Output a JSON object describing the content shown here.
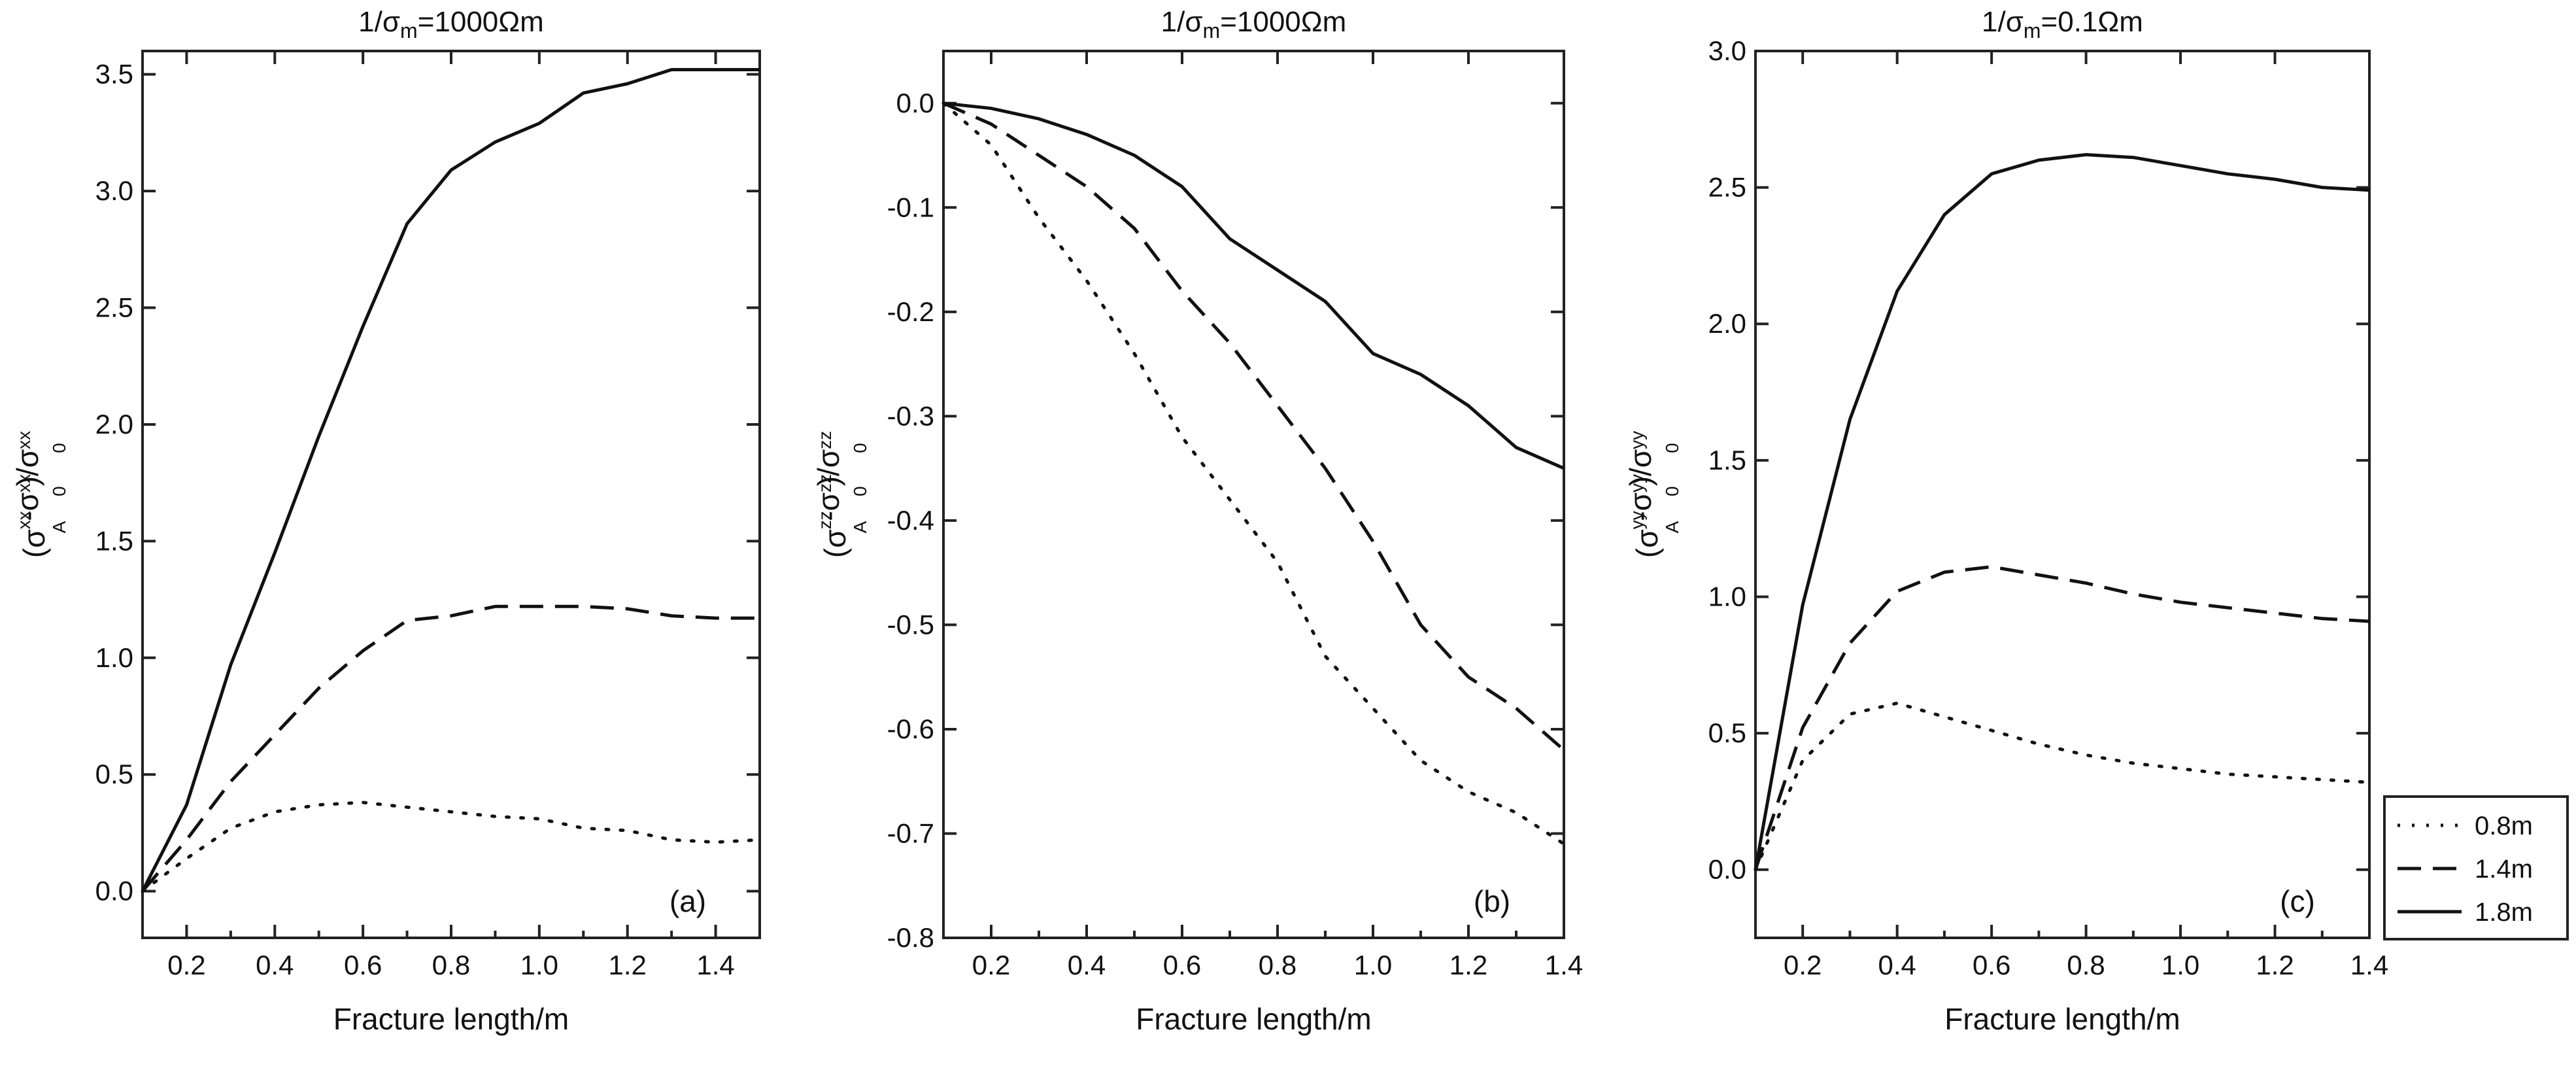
{
  "legend": {
    "entries": [
      {
        "label": "0.8m",
        "style": "dotted"
      },
      {
        "label": "1.4m",
        "style": "dashed"
      },
      {
        "label": "1.8m",
        "style": "solid"
      }
    ]
  },
  "chart_data": [
    {
      "type": "line",
      "title_prefix": "1/σ",
      "title_sub": "m",
      "title_suffix": "=1000Ωm",
      "panel_label": "(a)",
      "xlabel": "Fracture length/m",
      "ylabel_var": "xx",
      "xlim": [
        0.1,
        1.5
      ],
      "ylim": [
        -0.2,
        3.6
      ],
      "xticks": [
        0.2,
        0.4,
        0.6,
        0.8,
        1.0,
        1.2,
        1.4
      ],
      "xtick_labels": [
        "0.2",
        "0.4",
        "0.6",
        "0.8",
        "1.0",
        "1.2",
        "1.4"
      ],
      "yticks": [
        0.0,
        0.5,
        1.0,
        1.5,
        2.0,
        2.5,
        3.0,
        3.5
      ],
      "ytick_labels": [
        "0.0",
        "0.5",
        "1.0",
        "1.5",
        "2.0",
        "2.5",
        "3.0",
        "3.5"
      ],
      "series": [
        {
          "name": "0.8m",
          "style": "dotted",
          "x": [
            0.1,
            0.2,
            0.3,
            0.4,
            0.5,
            0.6,
            0.7,
            0.8,
            0.9,
            1.0,
            1.1,
            1.2,
            1.3,
            1.4,
            1.5
          ],
          "y": [
            0.0,
            0.14,
            0.27,
            0.34,
            0.37,
            0.38,
            0.36,
            0.34,
            0.32,
            0.31,
            0.27,
            0.26,
            0.22,
            0.21,
            0.22
          ]
        },
        {
          "name": "1.4m",
          "style": "dashed",
          "x": [
            0.1,
            0.2,
            0.3,
            0.4,
            0.5,
            0.6,
            0.7,
            0.8,
            0.9,
            1.0,
            1.1,
            1.2,
            1.3,
            1.4,
            1.5
          ],
          "y": [
            0.0,
            0.22,
            0.47,
            0.67,
            0.87,
            1.03,
            1.16,
            1.18,
            1.22,
            1.22,
            1.22,
            1.21,
            1.18,
            1.17,
            1.17
          ]
        },
        {
          "name": "1.8m",
          "style": "solid",
          "x": [
            0.1,
            0.2,
            0.3,
            0.4,
            0.5,
            0.6,
            0.7,
            0.8,
            0.9,
            1.0,
            1.1,
            1.2,
            1.3,
            1.4,
            1.5
          ],
          "y": [
            0.0,
            0.37,
            0.97,
            1.45,
            1.95,
            2.42,
            2.86,
            3.09,
            3.21,
            3.29,
            3.42,
            3.46,
            3.52,
            3.52,
            3.52
          ]
        }
      ]
    },
    {
      "type": "line",
      "title_prefix": "1/σ",
      "title_sub": "m",
      "title_suffix": "=1000Ωm",
      "panel_label": "(b)",
      "xlabel": "Fracture length/m",
      "ylabel_var": "zz",
      "xlim": [
        0.1,
        1.4
      ],
      "ylim": [
        -0.8,
        0.05
      ],
      "xticks": [
        0.2,
        0.4,
        0.6,
        0.8,
        1.0,
        1.2,
        1.4
      ],
      "xtick_labels": [
        "0.2",
        "0.4",
        "0.6",
        "0.8",
        "1.0",
        "1.2",
        "1.4"
      ],
      "yticks": [
        0.0,
        -0.1,
        -0.2,
        -0.3,
        -0.4,
        -0.5,
        -0.6,
        -0.7,
        -0.8
      ],
      "ytick_labels": [
        "0.0",
        "-0.1",
        "-0.2",
        "-0.3",
        "-0.4",
        "-0.5",
        "-0.6",
        "-0.7",
        "-0.8"
      ],
      "series": [
        {
          "name": "0.8m",
          "style": "dotted",
          "x": [
            0.1,
            0.2,
            0.3,
            0.4,
            0.5,
            0.6,
            0.7,
            0.8,
            0.9,
            1.0,
            1.1,
            1.2,
            1.3,
            1.4
          ],
          "y": [
            0.0,
            -0.04,
            -0.11,
            -0.17,
            -0.24,
            -0.32,
            -0.38,
            -0.44,
            -0.53,
            -0.58,
            -0.63,
            -0.66,
            -0.68,
            -0.71
          ]
        },
        {
          "name": "1.4m",
          "style": "dashed",
          "x": [
            0.1,
            0.2,
            0.3,
            0.4,
            0.5,
            0.6,
            0.7,
            0.8,
            0.9,
            1.0,
            1.1,
            1.2,
            1.3,
            1.4
          ],
          "y": [
            0.0,
            -0.02,
            -0.05,
            -0.08,
            -0.12,
            -0.18,
            -0.23,
            -0.29,
            -0.35,
            -0.42,
            -0.5,
            -0.55,
            -0.58,
            -0.62
          ]
        },
        {
          "name": "1.8m",
          "style": "solid",
          "x": [
            0.1,
            0.2,
            0.3,
            0.4,
            0.5,
            0.6,
            0.7,
            0.8,
            0.9,
            1.0,
            1.1,
            1.2,
            1.3,
            1.4
          ],
          "y": [
            0.0,
            -0.005,
            -0.015,
            -0.03,
            -0.05,
            -0.08,
            -0.13,
            -0.16,
            -0.19,
            -0.24,
            -0.26,
            -0.29,
            -0.33,
            -0.35
          ]
        }
      ]
    },
    {
      "type": "line",
      "title_prefix": "1/σ",
      "title_sub": "m",
      "title_suffix": "=0.1Ωm",
      "panel_label": "(c)",
      "xlabel": "Fracture length/m",
      "ylabel_var": "yy",
      "xlim": [
        0.1,
        1.4
      ],
      "ylim": [
        -0.25,
        3.0
      ],
      "xticks": [
        0.2,
        0.4,
        0.6,
        0.8,
        1.0,
        1.2,
        1.4
      ],
      "xtick_labels": [
        "0.2",
        "0.4",
        "0.6",
        "0.8",
        "1.0",
        "1.2",
        "1.4"
      ],
      "yticks": [
        0.0,
        0.5,
        1.0,
        1.5,
        2.0,
        2.5,
        3.0
      ],
      "ytick_labels": [
        "0.0",
        "0.5",
        "1.0",
        "1.5",
        "2.0",
        "2.5",
        "3.0"
      ],
      "series": [
        {
          "name": "0.8m",
          "style": "dotted",
          "x": [
            0.1,
            0.2,
            0.3,
            0.4,
            0.5,
            0.6,
            0.7,
            0.8,
            0.9,
            1.0,
            1.1,
            1.2,
            1.3,
            1.4
          ],
          "y": [
            0.0,
            0.4,
            0.57,
            0.61,
            0.56,
            0.51,
            0.46,
            0.42,
            0.39,
            0.37,
            0.35,
            0.34,
            0.33,
            0.32
          ]
        },
        {
          "name": "1.4m",
          "style": "dashed",
          "x": [
            0.1,
            0.2,
            0.3,
            0.4,
            0.5,
            0.6,
            0.7,
            0.8,
            0.9,
            1.0,
            1.1,
            1.2,
            1.3,
            1.4
          ],
          "y": [
            0.0,
            0.52,
            0.83,
            1.02,
            1.09,
            1.11,
            1.08,
            1.05,
            1.01,
            0.98,
            0.96,
            0.94,
            0.92,
            0.91
          ]
        },
        {
          "name": "1.8m",
          "style": "solid",
          "x": [
            0.1,
            0.2,
            0.3,
            0.4,
            0.5,
            0.6,
            0.7,
            0.8,
            0.9,
            1.0,
            1.1,
            1.2,
            1.3,
            1.4
          ],
          "y": [
            0.0,
            0.97,
            1.65,
            2.12,
            2.4,
            2.55,
            2.6,
            2.62,
            2.61,
            2.58,
            2.55,
            2.53,
            2.5,
            2.49
          ]
        }
      ]
    }
  ]
}
